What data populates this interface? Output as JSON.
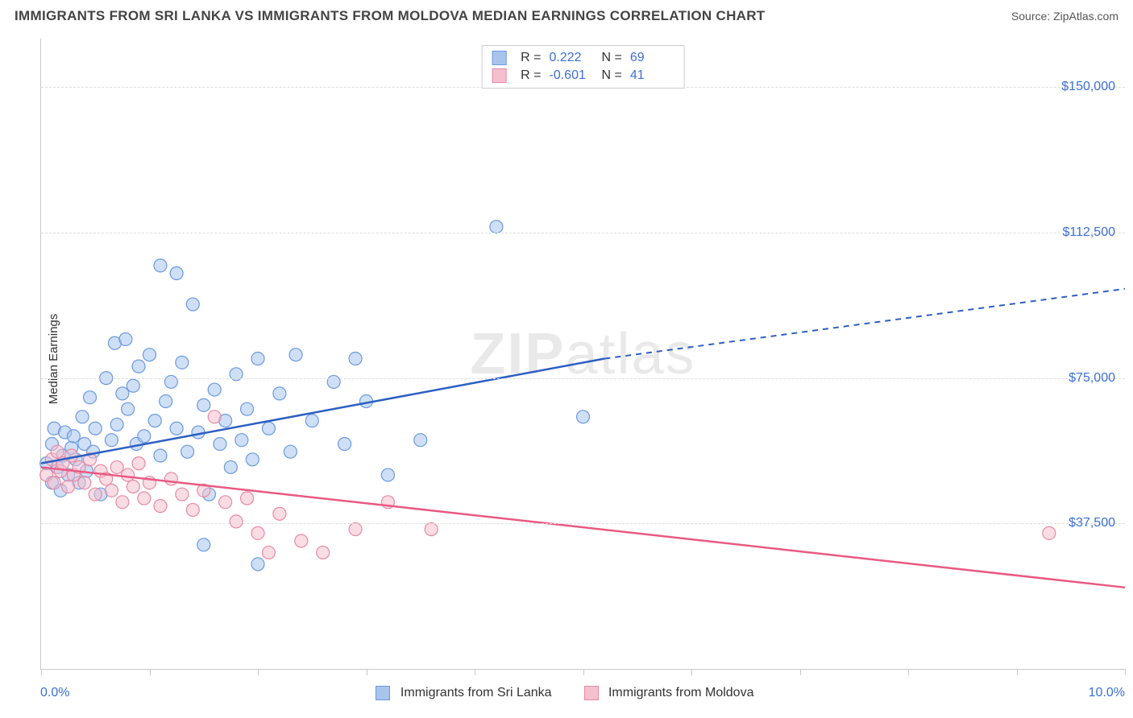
{
  "header": {
    "title": "IMMIGRANTS FROM SRI LANKA VS IMMIGRANTS FROM MOLDOVA MEDIAN EARNINGS CORRELATION CHART",
    "source": "Source: ZipAtlas.com"
  },
  "chart": {
    "type": "scatter",
    "watermark": "ZIPatlas",
    "ylabel": "Median Earnings",
    "xlim": [
      0.0,
      10.0
    ],
    "ylim": [
      0,
      162500
    ],
    "xmin_label": "0.0%",
    "xmax_label": "10.0%",
    "xtick_positions": [
      0,
      1,
      2,
      3,
      4,
      5,
      6,
      7,
      8,
      9,
      10
    ],
    "yticks": [
      {
        "value": 37500,
        "label": "$37,500"
      },
      {
        "value": 75000,
        "label": "$75,000"
      },
      {
        "value": 112500,
        "label": "$112,500"
      },
      {
        "value": 150000,
        "label": "$150,000"
      }
    ],
    "grid_color": "#dddddd",
    "axis_color": "#c8c8c8",
    "background_color": "#ffffff",
    "label_color": "#3b6fd4",
    "series": [
      {
        "name": "Immigrants from Sri Lanka",
        "color_fill": "#a8c4ec",
        "color_stroke": "#6b9ae0",
        "trend_color": "#2e5fc2",
        "r_label": "R =",
        "r_value": "0.222",
        "n_label": "N =",
        "n_value": "69",
        "trend": {
          "x1": 0.0,
          "y1": 53000,
          "x2_solid": 5.2,
          "y2_solid": 80000,
          "x2_dash": 10.0,
          "y2_dash": 98000
        },
        "points": [
          [
            0.05,
            53000
          ],
          [
            0.1,
            58000
          ],
          [
            0.1,
            48000
          ],
          [
            0.12,
            62000
          ],
          [
            0.15,
            52000
          ],
          [
            0.18,
            46000
          ],
          [
            0.2,
            55000
          ],
          [
            0.22,
            61000
          ],
          [
            0.25,
            50000
          ],
          [
            0.28,
            57000
          ],
          [
            0.3,
            60000
          ],
          [
            0.32,
            54000
          ],
          [
            0.35,
            48000
          ],
          [
            0.38,
            65000
          ],
          [
            0.4,
            58000
          ],
          [
            0.42,
            51000
          ],
          [
            0.45,
            70000
          ],
          [
            0.48,
            56000
          ],
          [
            0.5,
            62000
          ],
          [
            0.55,
            45000
          ],
          [
            0.6,
            75000
          ],
          [
            0.65,
            59000
          ],
          [
            0.68,
            84000
          ],
          [
            0.7,
            63000
          ],
          [
            0.75,
            71000
          ],
          [
            0.78,
            85000
          ],
          [
            0.8,
            67000
          ],
          [
            0.85,
            73000
          ],
          [
            0.88,
            58000
          ],
          [
            0.9,
            78000
          ],
          [
            0.95,
            60000
          ],
          [
            1.0,
            81000
          ],
          [
            1.05,
            64000
          ],
          [
            1.1,
            55000
          ],
          [
            1.1,
            104000
          ],
          [
            1.15,
            69000
          ],
          [
            1.2,
            74000
          ],
          [
            1.25,
            62000
          ],
          [
            1.25,
            102000
          ],
          [
            1.3,
            79000
          ],
          [
            1.35,
            56000
          ],
          [
            1.4,
            94000
          ],
          [
            1.45,
            61000
          ],
          [
            1.5,
            68000
          ],
          [
            1.5,
            32000
          ],
          [
            1.55,
            45000
          ],
          [
            1.6,
            72000
          ],
          [
            1.65,
            58000
          ],
          [
            1.7,
            64000
          ],
          [
            1.75,
            52000
          ],
          [
            1.8,
            76000
          ],
          [
            1.85,
            59000
          ],
          [
            1.9,
            67000
          ],
          [
            1.95,
            54000
          ],
          [
            2.0,
            80000
          ],
          [
            2.0,
            27000
          ],
          [
            2.1,
            62000
          ],
          [
            2.2,
            71000
          ],
          [
            2.3,
            56000
          ],
          [
            2.35,
            81000
          ],
          [
            2.5,
            64000
          ],
          [
            2.7,
            74000
          ],
          [
            2.8,
            58000
          ],
          [
            2.9,
            80000
          ],
          [
            3.0,
            69000
          ],
          [
            3.2,
            50000
          ],
          [
            3.5,
            59000
          ],
          [
            4.2,
            114000
          ],
          [
            5.0,
            65000
          ]
        ]
      },
      {
        "name": "Immigrants from Moldova",
        "color_fill": "#f4c0ce",
        "color_stroke": "#e88aa3",
        "trend_color": "#e85a82",
        "r_label": "R =",
        "r_value": "-0.601",
        "n_label": "N =",
        "n_value": "41",
        "trend": {
          "x1": 0.0,
          "y1": 52000,
          "x2_solid": 10.0,
          "y2_solid": 21000,
          "x2_dash": 10.0,
          "y2_dash": 21000
        },
        "points": [
          [
            0.05,
            50000
          ],
          [
            0.1,
            54000
          ],
          [
            0.12,
            48000
          ],
          [
            0.15,
            56000
          ],
          [
            0.18,
            51000
          ],
          [
            0.2,
            53000
          ],
          [
            0.25,
            47000
          ],
          [
            0.28,
            55000
          ],
          [
            0.3,
            50000
          ],
          [
            0.35,
            52000
          ],
          [
            0.4,
            48000
          ],
          [
            0.45,
            54000
          ],
          [
            0.5,
            45000
          ],
          [
            0.55,
            51000
          ],
          [
            0.6,
            49000
          ],
          [
            0.65,
            46000
          ],
          [
            0.7,
            52000
          ],
          [
            0.75,
            43000
          ],
          [
            0.8,
            50000
          ],
          [
            0.85,
            47000
          ],
          [
            0.9,
            53000
          ],
          [
            0.95,
            44000
          ],
          [
            1.0,
            48000
          ],
          [
            1.1,
            42000
          ],
          [
            1.2,
            49000
          ],
          [
            1.3,
            45000
          ],
          [
            1.4,
            41000
          ],
          [
            1.5,
            46000
          ],
          [
            1.6,
            65000
          ],
          [
            1.7,
            43000
          ],
          [
            1.8,
            38000
          ],
          [
            1.9,
            44000
          ],
          [
            2.0,
            35000
          ],
          [
            2.1,
            30000
          ],
          [
            2.2,
            40000
          ],
          [
            2.4,
            33000
          ],
          [
            2.6,
            30000
          ],
          [
            2.9,
            36000
          ],
          [
            3.2,
            43000
          ],
          [
            3.6,
            36000
          ],
          [
            9.3,
            35000
          ]
        ]
      }
    ]
  },
  "legend": {
    "series1": "Immigrants from Sri Lanka",
    "series2": "Immigrants from Moldova"
  }
}
